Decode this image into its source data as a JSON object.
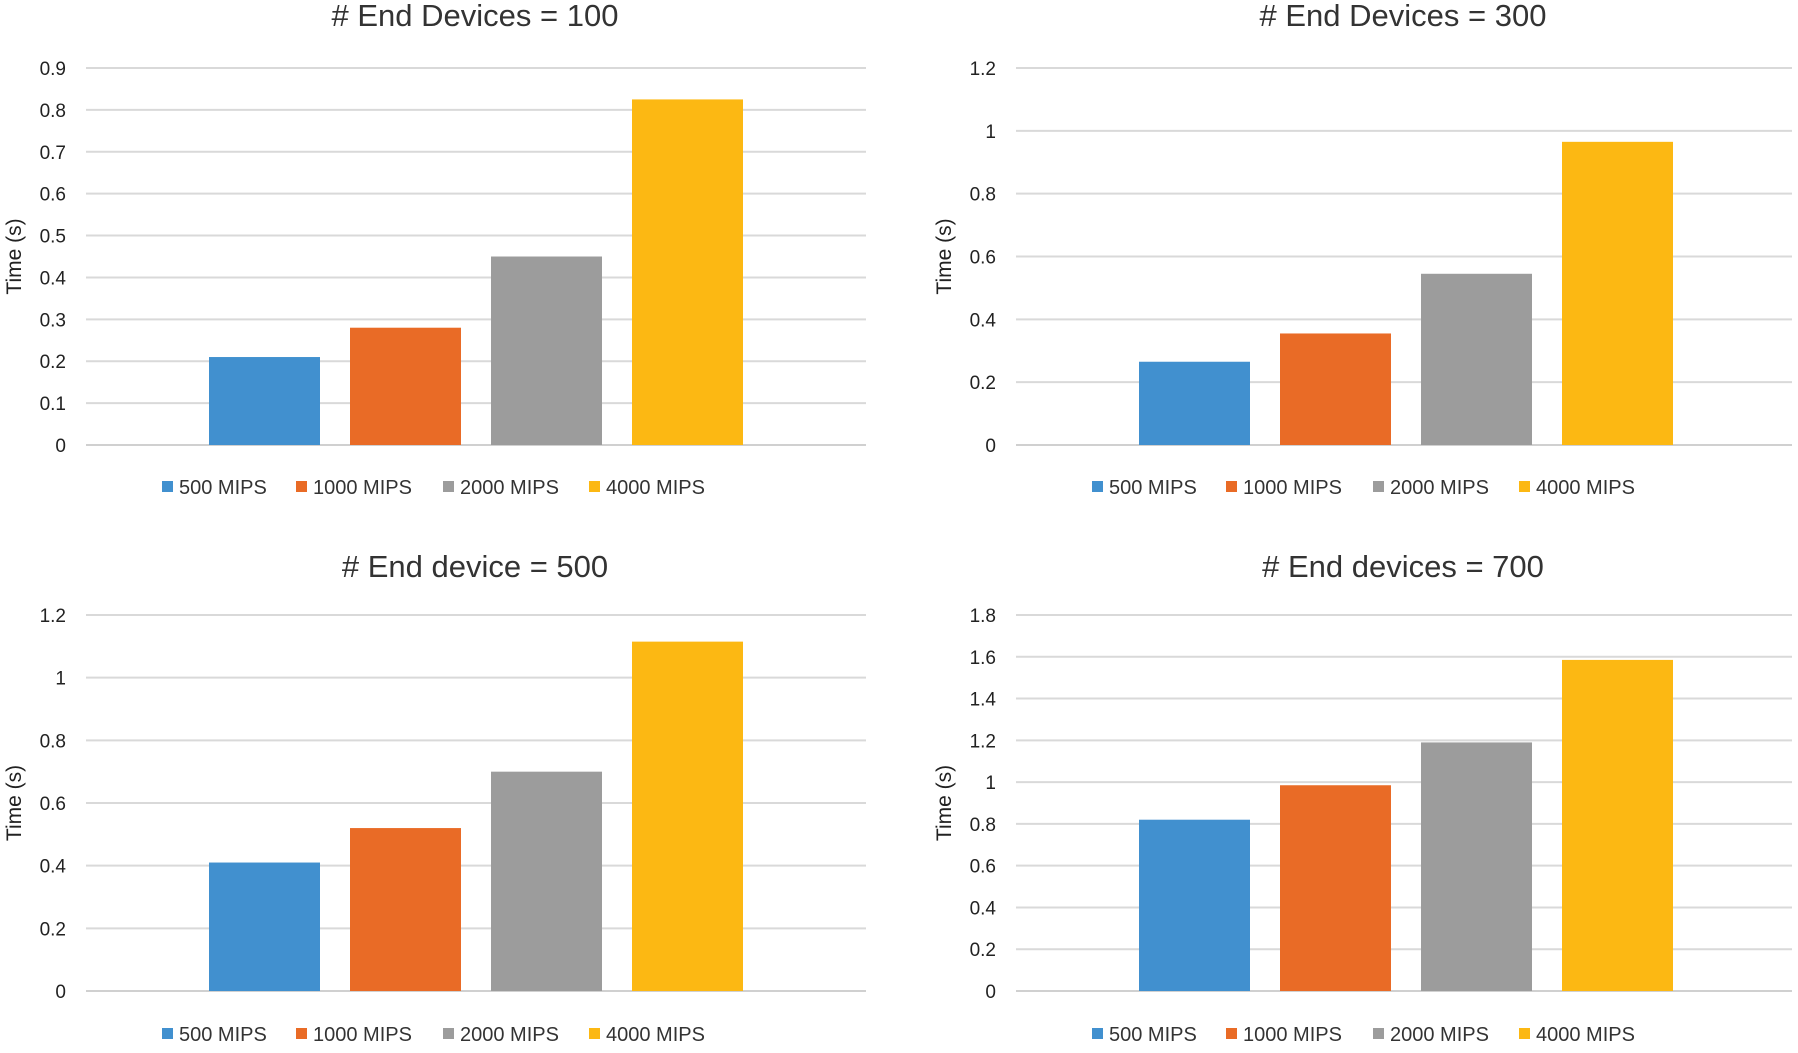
{
  "figure": {
    "colors": [
      "#4190cf",
      "#e96b26",
      "#9c9c9c",
      "#fcb813"
    ]
  },
  "chart_data": [
    {
      "type": "bar",
      "title": "# End Devices = 100",
      "xlabel": "",
      "ylabel": "Time (s)",
      "ylim": [
        0,
        0.9
      ],
      "yticks": [
        "0",
        "0.1",
        "0.2",
        "0.3",
        "0.4",
        "0.5",
        "0.6",
        "0.7",
        "0.8",
        "0.9"
      ],
      "categories": [
        ""
      ],
      "series": [
        {
          "name": "500 MIPS",
          "values": [
            0.21
          ],
          "color": "#4190cf"
        },
        {
          "name": "1000 MIPS",
          "values": [
            0.28
          ],
          "color": "#e96b26"
        },
        {
          "name": "2000 MIPS",
          "values": [
            0.45
          ],
          "color": "#9c9c9c"
        },
        {
          "name": "4000 MIPS",
          "values": [
            0.825
          ],
          "color": "#fcb813"
        }
      ],
      "legend": "bottom"
    },
    {
      "type": "bar",
      "title": "# End Devices = 300",
      "xlabel": "",
      "ylabel": "Time (s)",
      "ylim": [
        0,
        1.2
      ],
      "yticks": [
        "0",
        "0.2",
        "0.4",
        "0.6",
        "0.8",
        "1",
        "1.2"
      ],
      "categories": [
        ""
      ],
      "series": [
        {
          "name": "500 MIPS",
          "values": [
            0.265
          ],
          "color": "#4190cf"
        },
        {
          "name": "1000 MIPS",
          "values": [
            0.355
          ],
          "color": "#e96b26"
        },
        {
          "name": "2000 MIPS",
          "values": [
            0.545
          ],
          "color": "#9c9c9c"
        },
        {
          "name": "4000 MIPS",
          "values": [
            0.965
          ],
          "color": "#fcb813"
        }
      ],
      "legend": "bottom"
    },
    {
      "type": "bar",
      "title": "# End device = 500",
      "xlabel": "",
      "ylabel": "Time (s)",
      "ylim": [
        0,
        1.2
      ],
      "yticks": [
        "0",
        "0.2",
        "0.4",
        "0.6",
        "0.8",
        "1",
        "1.2"
      ],
      "categories": [
        ""
      ],
      "series": [
        {
          "name": "500 MIPS",
          "values": [
            0.41
          ],
          "color": "#4190cf"
        },
        {
          "name": "1000 MIPS",
          "values": [
            0.52
          ],
          "color": "#e96b26"
        },
        {
          "name": "2000 MIPS",
          "values": [
            0.7
          ],
          "color": "#9c9c9c"
        },
        {
          "name": "4000 MIPS",
          "values": [
            1.115
          ],
          "color": "#fcb813"
        }
      ],
      "legend": "bottom"
    },
    {
      "type": "bar",
      "title": "# End devices = 700",
      "xlabel": "",
      "ylabel": "Time (s)",
      "ylim": [
        0,
        1.8
      ],
      "yticks": [
        "0",
        "0.2",
        "0.4",
        "0.6",
        "0.8",
        "1",
        "1.2",
        "1.4",
        "1.6",
        "1.8"
      ],
      "categories": [
        ""
      ],
      "series": [
        {
          "name": "500 MIPS",
          "values": [
            0.82
          ],
          "color": "#4190cf"
        },
        {
          "name": "1000 MIPS",
          "values": [
            0.985
          ],
          "color": "#e96b26"
        },
        {
          "name": "2000 MIPS",
          "values": [
            1.19
          ],
          "color": "#9c9c9c"
        },
        {
          "name": "4000 MIPS",
          "values": [
            1.585
          ],
          "color": "#fcb813"
        }
      ],
      "legend": "bottom"
    }
  ]
}
